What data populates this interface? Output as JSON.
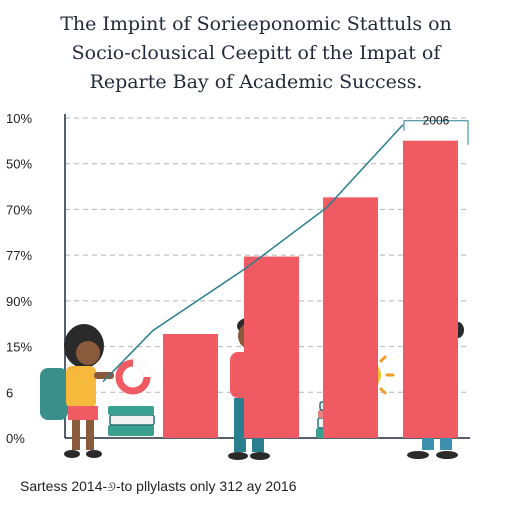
{
  "title_lines": [
    "The Impint of Sorieeponomic Stattuls on",
    "Socio-clousical Ceepitt of the Impat of",
    "Reparte Bay of Academic Success."
  ],
  "footer": "Sartess 2014-୬-to pllylasts only 312 ay 2016",
  "colors": {
    "bar": "#f05a63",
    "line": "#2a7f8f",
    "grid": "#b5b5b5",
    "axis": "#1f2a3a",
    "text": "#1f2a3a"
  },
  "chart_data": {
    "type": "bar",
    "y_tick_labels": [
      "10%",
      "50%",
      "70%",
      "77%",
      "90%",
      "15%",
      "6",
      "0%"
    ],
    "bar_values": [
      0.325,
      0.567,
      0.752,
      0.929
    ],
    "trend_line": [
      0.176,
      0.336,
      0.531,
      0.721,
      0.979
    ],
    "annotation": "2006",
    "grid": true,
    "illustrations": [
      "child-with-backpack",
      "books-stack",
      "boy-holding-phone",
      "sun-icon",
      "girl-standing"
    ]
  }
}
